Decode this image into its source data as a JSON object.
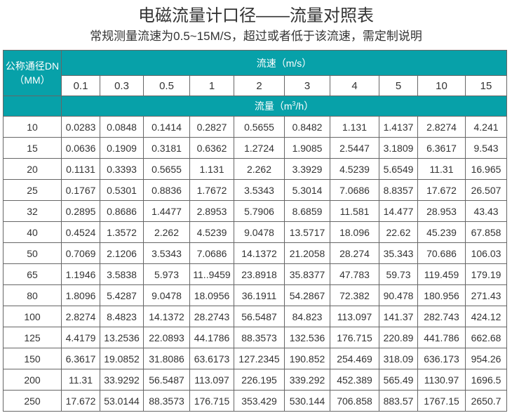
{
  "title": "电磁流量计口径——流量对照表",
  "subtitle": "常规测量流速为0.5~15M/S，超过或者低于该流速，需定制说明",
  "table": {
    "dn_header_line1": "公称通径DN",
    "dn_header_line2": "（MM）",
    "velocity_header": "流速（m/s）",
    "flow_header_prefix": "流量（m",
    "flow_header_sup": "3",
    "flow_header_suffix": "/h）",
    "velocities": [
      "0.1",
      "0.3",
      "0.5",
      "1",
      "2",
      "3",
      "4",
      "5",
      "10",
      "15"
    ],
    "rows": [
      [
        "10",
        "0.0283",
        "0.0848",
        "0.1414",
        "0.2827",
        "0.5655",
        "0.8482",
        "1.131",
        "1.4137",
        "2.8274",
        "4.241"
      ],
      [
        "15",
        "0.0636",
        "0.1909",
        "0.3181",
        "0.6362",
        "1.2724",
        "1.9085",
        "2.5447",
        "3.1809",
        "6.3617",
        "9.543"
      ],
      [
        "20",
        "0.1131",
        "0.3393",
        "0.5655",
        "1.131",
        "2.262",
        "3.3929",
        "4.5239",
        "5.6549",
        "11.31",
        "16.965"
      ],
      [
        "25",
        "0.1767",
        "0.5301",
        "0.8836",
        "1.7672",
        "3.5343",
        "5.3014",
        "7.0686",
        "8.8357",
        "17.672",
        "26.507"
      ],
      [
        "32",
        "0.2895",
        "0.8686",
        "1.4477",
        "2.8953",
        "5.7906",
        "8.6859",
        "11.581",
        "14.477",
        "28.953",
        "43.43"
      ],
      [
        "40",
        "0.4524",
        "1.3572",
        "2.262",
        "4.5239",
        "9.0478",
        "13.5717",
        "18.096",
        "22.62",
        "45.239",
        "67.858"
      ],
      [
        "50",
        "0.7069",
        "2.1206",
        "3.5343",
        "7.0686",
        "14.1372",
        "21.2058",
        "28.274",
        "35.343",
        "70.686",
        "106.03"
      ],
      [
        "65",
        "1.1946",
        "3.5838",
        "5.973",
        "11..9459",
        "23.8918",
        "35.8377",
        "47.783",
        "59.73",
        "119.459",
        "179.19"
      ],
      [
        "80",
        "1.8096",
        "5.4287",
        "9.0478",
        "18.0956",
        "36.1911",
        "54.2867",
        "72.382",
        "90.478",
        "180.956",
        "271.43"
      ],
      [
        "100",
        "2.8274",
        "8.4823",
        "14.1372",
        "28.2743",
        "56.5487",
        "84.823",
        "113.097",
        "141.37",
        "282.743",
        "424.12"
      ],
      [
        "125",
        "4.4179",
        "13.2536",
        "22.0893",
        "44.1786",
        "88.3573",
        "132.536",
        "176.715",
        "220.89",
        "441.786",
        "662.68"
      ],
      [
        "150",
        "6.3617",
        "19.0852",
        "31.8086",
        "63.6173",
        "127.2345",
        "190.852",
        "254.469",
        "318.09",
        "636.173",
        "954.26"
      ],
      [
        "200",
        "11.31",
        "33.9292",
        "56.5487",
        "113.097",
        "226.195",
        "339.292",
        "452.389",
        "565.49",
        "1130.97",
        "1696.5"
      ],
      [
        "250",
        "17.672",
        "53.0144",
        "88.3573",
        "176.715",
        "353.429",
        "530.144",
        "706.858",
        "883.57",
        "1767.15",
        "2650.7"
      ]
    ]
  },
  "colors": {
    "header_teal": "#07a1a9"
  }
}
